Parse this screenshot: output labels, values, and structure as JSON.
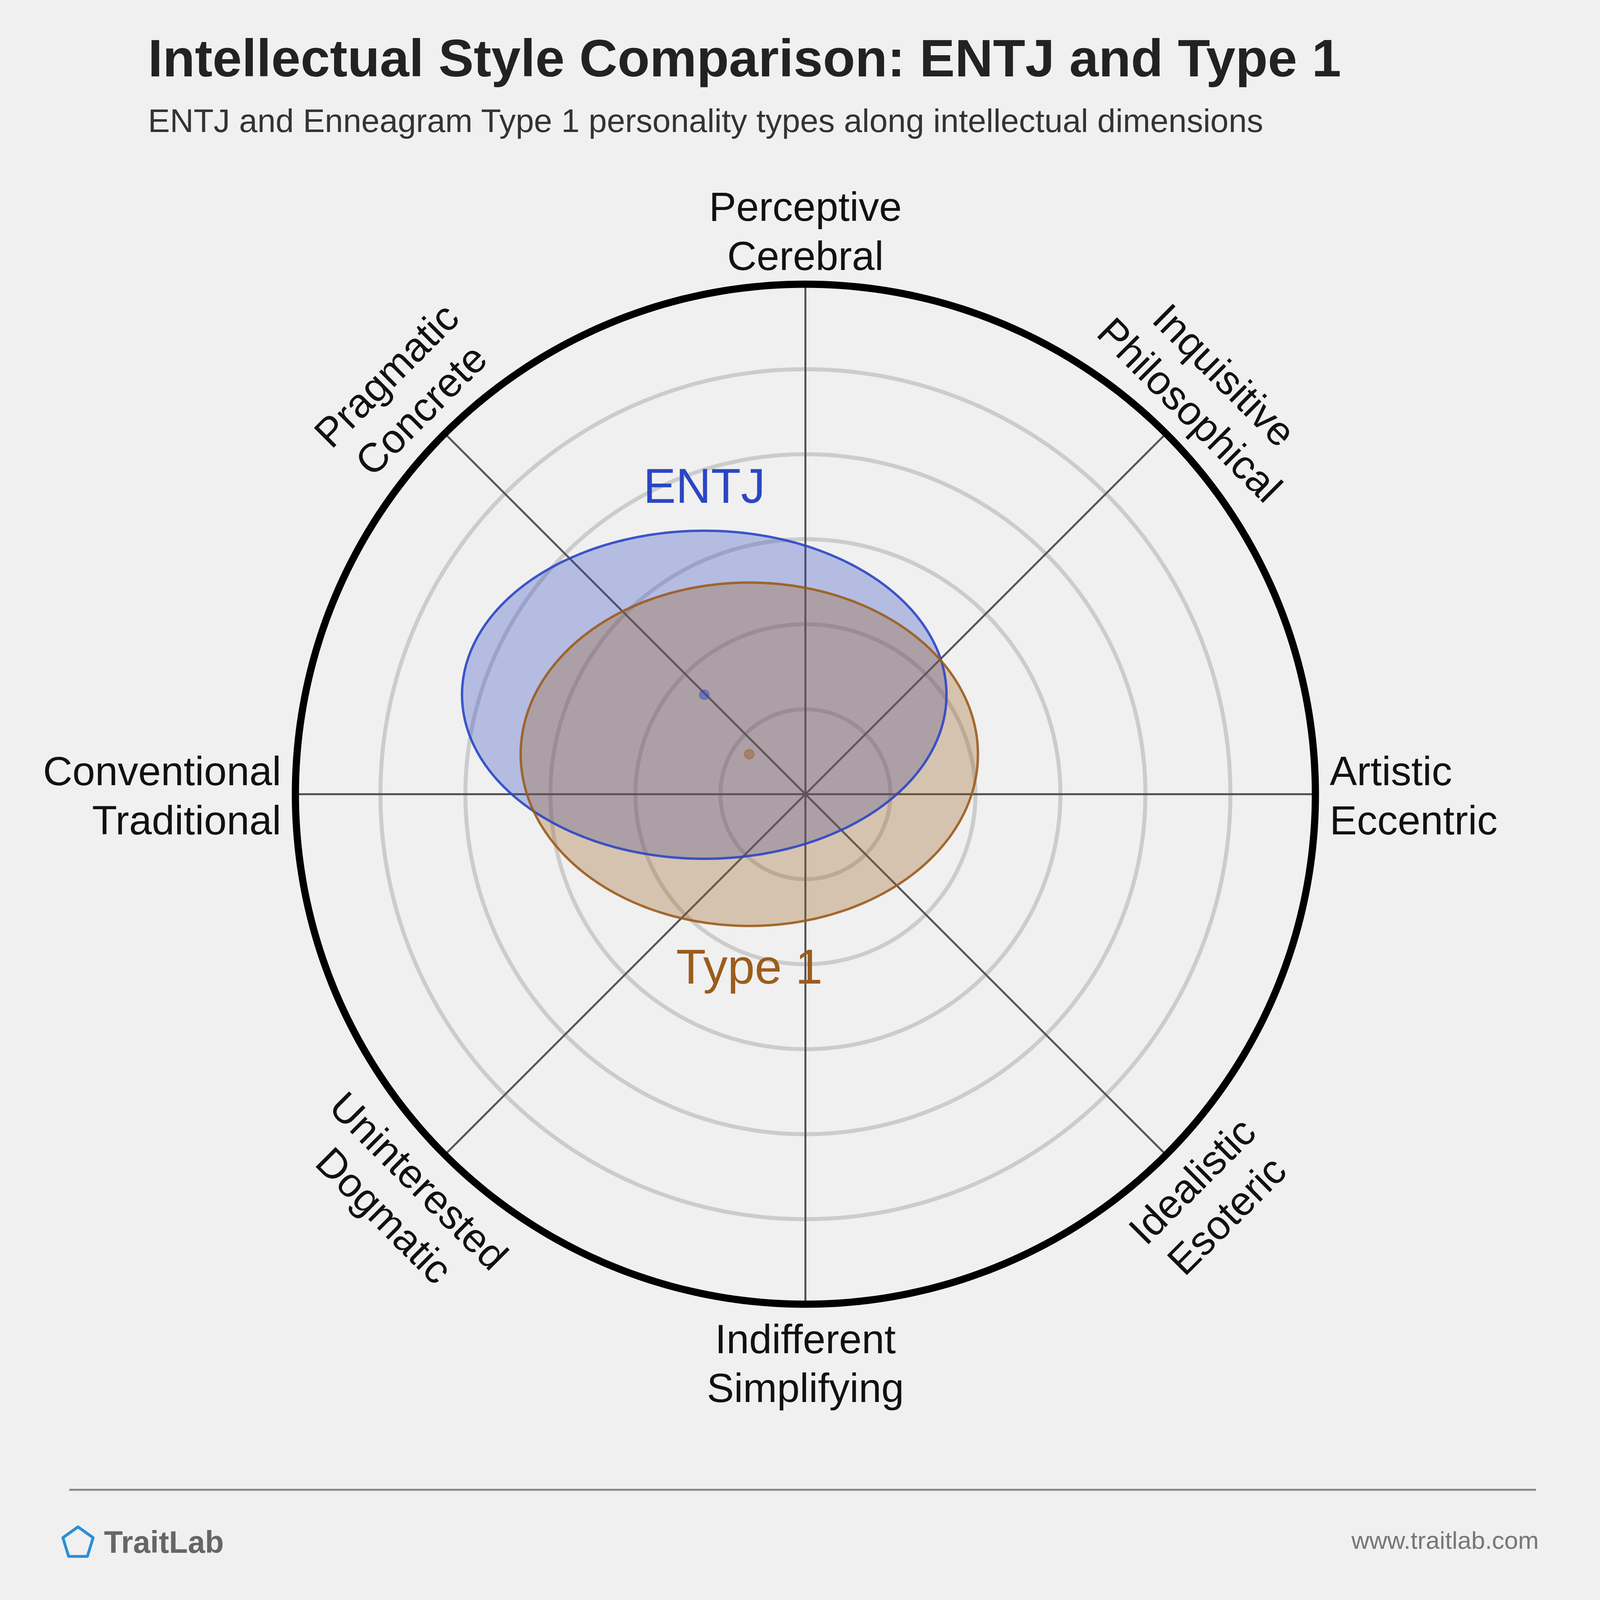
{
  "chart_data": {
    "type": "ellipse",
    "title": "Intellectual Style Comparison: ENTJ and Type 1",
    "subtitle": "ENTJ and Enneagram Type 1 personality types along intellectual dimensions",
    "dimensions": [
      [
        "Perceptive",
        "Cerebral"
      ],
      [
        "Inquisitive",
        "Philosophical"
      ],
      [
        "Artistic",
        "Eccentric"
      ],
      [
        "Idealistic",
        "Esoteric"
      ],
      [
        "Indifferent",
        "Simplifying"
      ],
      [
        "Uninterested",
        "Dogmatic"
      ],
      [
        "Conventional",
        "Traditional"
      ],
      [
        "Pragmatic",
        "Concrete"
      ]
    ],
    "series": [
      {
        "name": "ENTJ",
        "color": "#2b46c4",
        "center": [
          -1.19,
          1.17
        ],
        "spread": [
          2.85,
          1.93
        ]
      },
      {
        "name": "Type 1",
        "color": "#9c5c1c",
        "center": [
          -0.66,
          0.47
        ],
        "spread": [
          2.69,
          2.02
        ]
      }
    ],
    "xlim": [
      -6,
      6
    ],
    "ylim": [
      -6,
      6
    ],
    "rings": [
      1,
      2,
      3,
      4,
      5
    ],
    "grid": true,
    "tick_labels": false,
    "brand": "TraitLab",
    "source": "www.traitlab.com"
  }
}
